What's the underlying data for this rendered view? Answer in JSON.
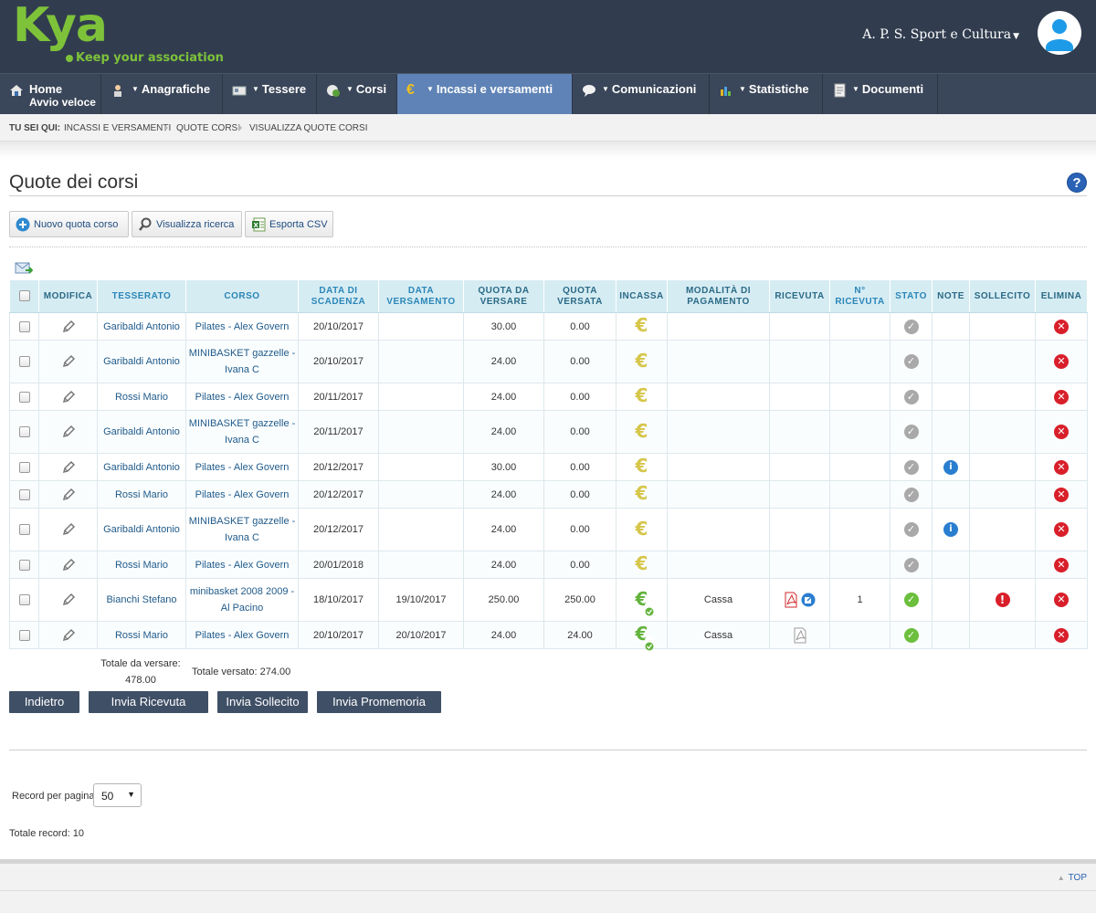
{
  "brand": {
    "logo_text": "Kya",
    "tagline": "Keep your association",
    "color": "#7ec23a"
  },
  "header": {
    "association": "A. P. S. Sport e Cultura"
  },
  "menu": [
    {
      "label": "Home",
      "sub": "Avvio veloce",
      "icon": "home-icon",
      "caret": false
    },
    {
      "label": "Anagrafiche",
      "icon": "person-icon",
      "caret": true
    },
    {
      "label": "Tessere",
      "icon": "card-icon",
      "caret": true
    },
    {
      "label": "Corsi",
      "icon": "course-icon",
      "caret": true
    },
    {
      "label": "Incassi e versamenti",
      "icon": "euro-icon",
      "caret": true,
      "active": true
    },
    {
      "label": "Comunicazioni",
      "icon": "speech-bubble-icon",
      "caret": true
    },
    {
      "label": "Statistiche",
      "icon": "bar-chart-icon",
      "caret": true
    },
    {
      "label": "Documenti",
      "icon": "document-icon",
      "caret": true
    }
  ],
  "breadcrumb": {
    "lead": "Tu sei qui:",
    "items": [
      "Incassi e versamenti",
      "Quote corsi",
      "Visualizza quote corsi"
    ]
  },
  "page": {
    "title": "Quote dei corsi"
  },
  "toolbar": {
    "new_label": "Nuovo quota corso",
    "search_label": "Visualizza ricerca",
    "export_label": "Esporta CSV"
  },
  "table": {
    "headers": [
      "Modifica",
      "Tesserato",
      "Corso",
      "Data di scadenza",
      "Data versamento",
      "Quota da versare",
      "Quota versata",
      "Incassa",
      "Modalità di pagamento",
      "Ricevuta",
      "N° ricevuta",
      "Stato",
      "Note",
      "Sollecito",
      "Elimina"
    ],
    "rows": [
      {
        "tesserato": "Garibaldi Antonio",
        "corso": "Pilates - Alex Govern",
        "scadenza": "20/10/2017",
        "versamento": "",
        "da_versare": "30.00",
        "versata": "0.00",
        "paid": false,
        "modalita": "",
        "ricevuta": "",
        "n_ricevuta": "",
        "stato": "pending",
        "note": false,
        "sollecito": false
      },
      {
        "tesserato": "Garibaldi Antonio",
        "corso": "MINIBASKET gazzelle - Ivana C",
        "scadenza": "20/10/2017",
        "versamento": "",
        "da_versare": "24.00",
        "versata": "0.00",
        "paid": false,
        "modalita": "",
        "ricevuta": "",
        "n_ricevuta": "",
        "stato": "pending",
        "note": false,
        "sollecito": false
      },
      {
        "tesserato": "Rossi Mario",
        "corso": "Pilates - Alex Govern",
        "scadenza": "20/11/2017",
        "versamento": "",
        "da_versare": "24.00",
        "versata": "0.00",
        "paid": false,
        "modalita": "",
        "ricevuta": "",
        "n_ricevuta": "",
        "stato": "pending",
        "note": false,
        "sollecito": false
      },
      {
        "tesserato": "Garibaldi Antonio",
        "corso": "MINIBASKET gazzelle - Ivana C",
        "scadenza": "20/11/2017",
        "versamento": "",
        "da_versare": "24.00",
        "versata": "0.00",
        "paid": false,
        "modalita": "",
        "ricevuta": "",
        "n_ricevuta": "",
        "stato": "pending",
        "note": false,
        "sollecito": false
      },
      {
        "tesserato": "Garibaldi Antonio",
        "corso": "Pilates - Alex Govern",
        "scadenza": "20/12/2017",
        "versamento": "",
        "da_versare": "30.00",
        "versata": "0.00",
        "paid": false,
        "modalita": "",
        "ricevuta": "",
        "n_ricevuta": "",
        "stato": "pending",
        "note": true,
        "sollecito": false
      },
      {
        "tesserato": "Rossi Mario",
        "corso": "Pilates - Alex Govern",
        "scadenza": "20/12/2017",
        "versamento": "",
        "da_versare": "24.00",
        "versata": "0.00",
        "paid": false,
        "modalita": "",
        "ricevuta": "",
        "n_ricevuta": "",
        "stato": "pending",
        "note": false,
        "sollecito": false
      },
      {
        "tesserato": "Garibaldi Antonio",
        "corso": "MINIBASKET gazzelle - Ivana C",
        "scadenza": "20/12/2017",
        "versamento": "",
        "da_versare": "24.00",
        "versata": "0.00",
        "paid": false,
        "modalita": "",
        "ricevuta": "",
        "n_ricevuta": "",
        "stato": "pending",
        "note": true,
        "sollecito": false
      },
      {
        "tesserato": "Rossi Mario",
        "corso": "Pilates - Alex Govern",
        "scadenza": "20/01/2018",
        "versamento": "",
        "da_versare": "24.00",
        "versata": "0.00",
        "paid": false,
        "modalita": "",
        "ricevuta": "",
        "n_ricevuta": "",
        "stato": "pending",
        "note": false,
        "sollecito": false
      },
      {
        "tesserato": "Bianchi Stefano",
        "corso": "minibasket 2008 2009 - Al Pacino",
        "scadenza": "18/10/2017",
        "versamento": "19/10/2017",
        "da_versare": "250.00",
        "versata": "250.00",
        "paid": true,
        "modalita": "Cassa",
        "ricevuta": "pdf-edit",
        "n_ricevuta": "1",
        "stato": "paid",
        "note": false,
        "sollecito": true
      },
      {
        "tesserato": "Rossi Mario",
        "corso": "Pilates - Alex Govern",
        "scadenza": "20/10/2017",
        "versamento": "20/10/2017",
        "da_versare": "24.00",
        "versata": "24.00",
        "paid": true,
        "modalita": "Cassa",
        "ricevuta": "pdf-grey",
        "n_ricevuta": "",
        "stato": "paid",
        "note": false,
        "sollecito": false
      }
    ]
  },
  "totals": {
    "da_versare_label": "Totale da versare:",
    "da_versare_value": "478.00",
    "versato": "Totale versato: 274.00"
  },
  "actions": {
    "back": "Indietro",
    "send_receipt": "Invia Ricevuta",
    "send_reminder": "Invia Sollecito",
    "send_promemoria": "Invia Promemoria"
  },
  "pagination": {
    "label": "Record per pagina",
    "value": "50",
    "total": "Totale record: 10"
  },
  "footer": {
    "top_label": "TOP"
  }
}
